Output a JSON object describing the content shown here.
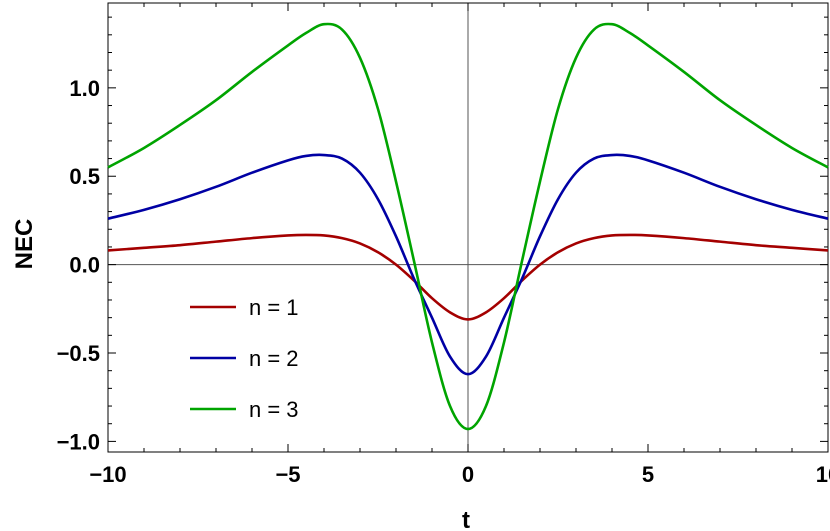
{
  "chart_data": {
    "type": "line",
    "title": "",
    "xlabel": "t",
    "ylabel": "NEC",
    "xlim": [
      -10,
      10
    ],
    "ylim": [
      -1.06,
      1.48
    ],
    "x_ticks": [
      -10,
      -5,
      0,
      5,
      10
    ],
    "x_tick_labels": [
      "−10",
      "−5",
      "0",
      "5",
      "10"
    ],
    "y_ticks": [
      -1.0,
      -0.5,
      0.0,
      0.5,
      1.0
    ],
    "y_tick_labels": [
      "−1.0",
      "−0.5",
      "0.0",
      "0.5",
      "1.0"
    ],
    "grid": false,
    "legend_position": "bottom-left",
    "x": [
      -10,
      -9,
      -8,
      -7,
      -6,
      -5,
      -4.5,
      -4,
      -3.5,
      -3,
      -2.5,
      -2,
      -1.5,
      -1,
      -0.5,
      0,
      0.5,
      1,
      1.5,
      2,
      2.5,
      3,
      3.5,
      4,
      4.5,
      5,
      6,
      7,
      8,
      9,
      10
    ],
    "series": [
      {
        "name": "n = 1",
        "color": "#a40000",
        "values": [
          0.08,
          0.095,
          0.11,
          0.13,
          0.15,
          0.165,
          0.168,
          0.165,
          0.15,
          0.12,
          0.07,
          0.0,
          -0.09,
          -0.19,
          -0.27,
          -0.31,
          -0.27,
          -0.19,
          -0.09,
          0.0,
          0.07,
          0.12,
          0.15,
          0.165,
          0.168,
          0.165,
          0.15,
          0.13,
          0.11,
          0.095,
          0.08
        ]
      },
      {
        "name": "n = 2",
        "color": "#0000a4",
        "values": [
          0.26,
          0.31,
          0.37,
          0.44,
          0.52,
          0.59,
          0.615,
          0.62,
          0.6,
          0.52,
          0.37,
          0.16,
          -0.08,
          -0.3,
          -0.52,
          -0.62,
          -0.52,
          -0.3,
          -0.08,
          0.16,
          0.37,
          0.52,
          0.6,
          0.62,
          0.615,
          0.59,
          0.52,
          0.44,
          0.37,
          0.31,
          0.26
        ]
      },
      {
        "name": "n = 3",
        "color": "#00a400",
        "values": [
          0.55,
          0.66,
          0.79,
          0.93,
          1.09,
          1.24,
          1.31,
          1.36,
          1.33,
          1.17,
          0.88,
          0.47,
          0.02,
          -0.44,
          -0.8,
          -0.93,
          -0.8,
          -0.44,
          0.02,
          0.47,
          0.88,
          1.17,
          1.33,
          1.36,
          1.31,
          1.24,
          1.09,
          0.93,
          0.79,
          0.66,
          0.55
        ]
      }
    ]
  }
}
